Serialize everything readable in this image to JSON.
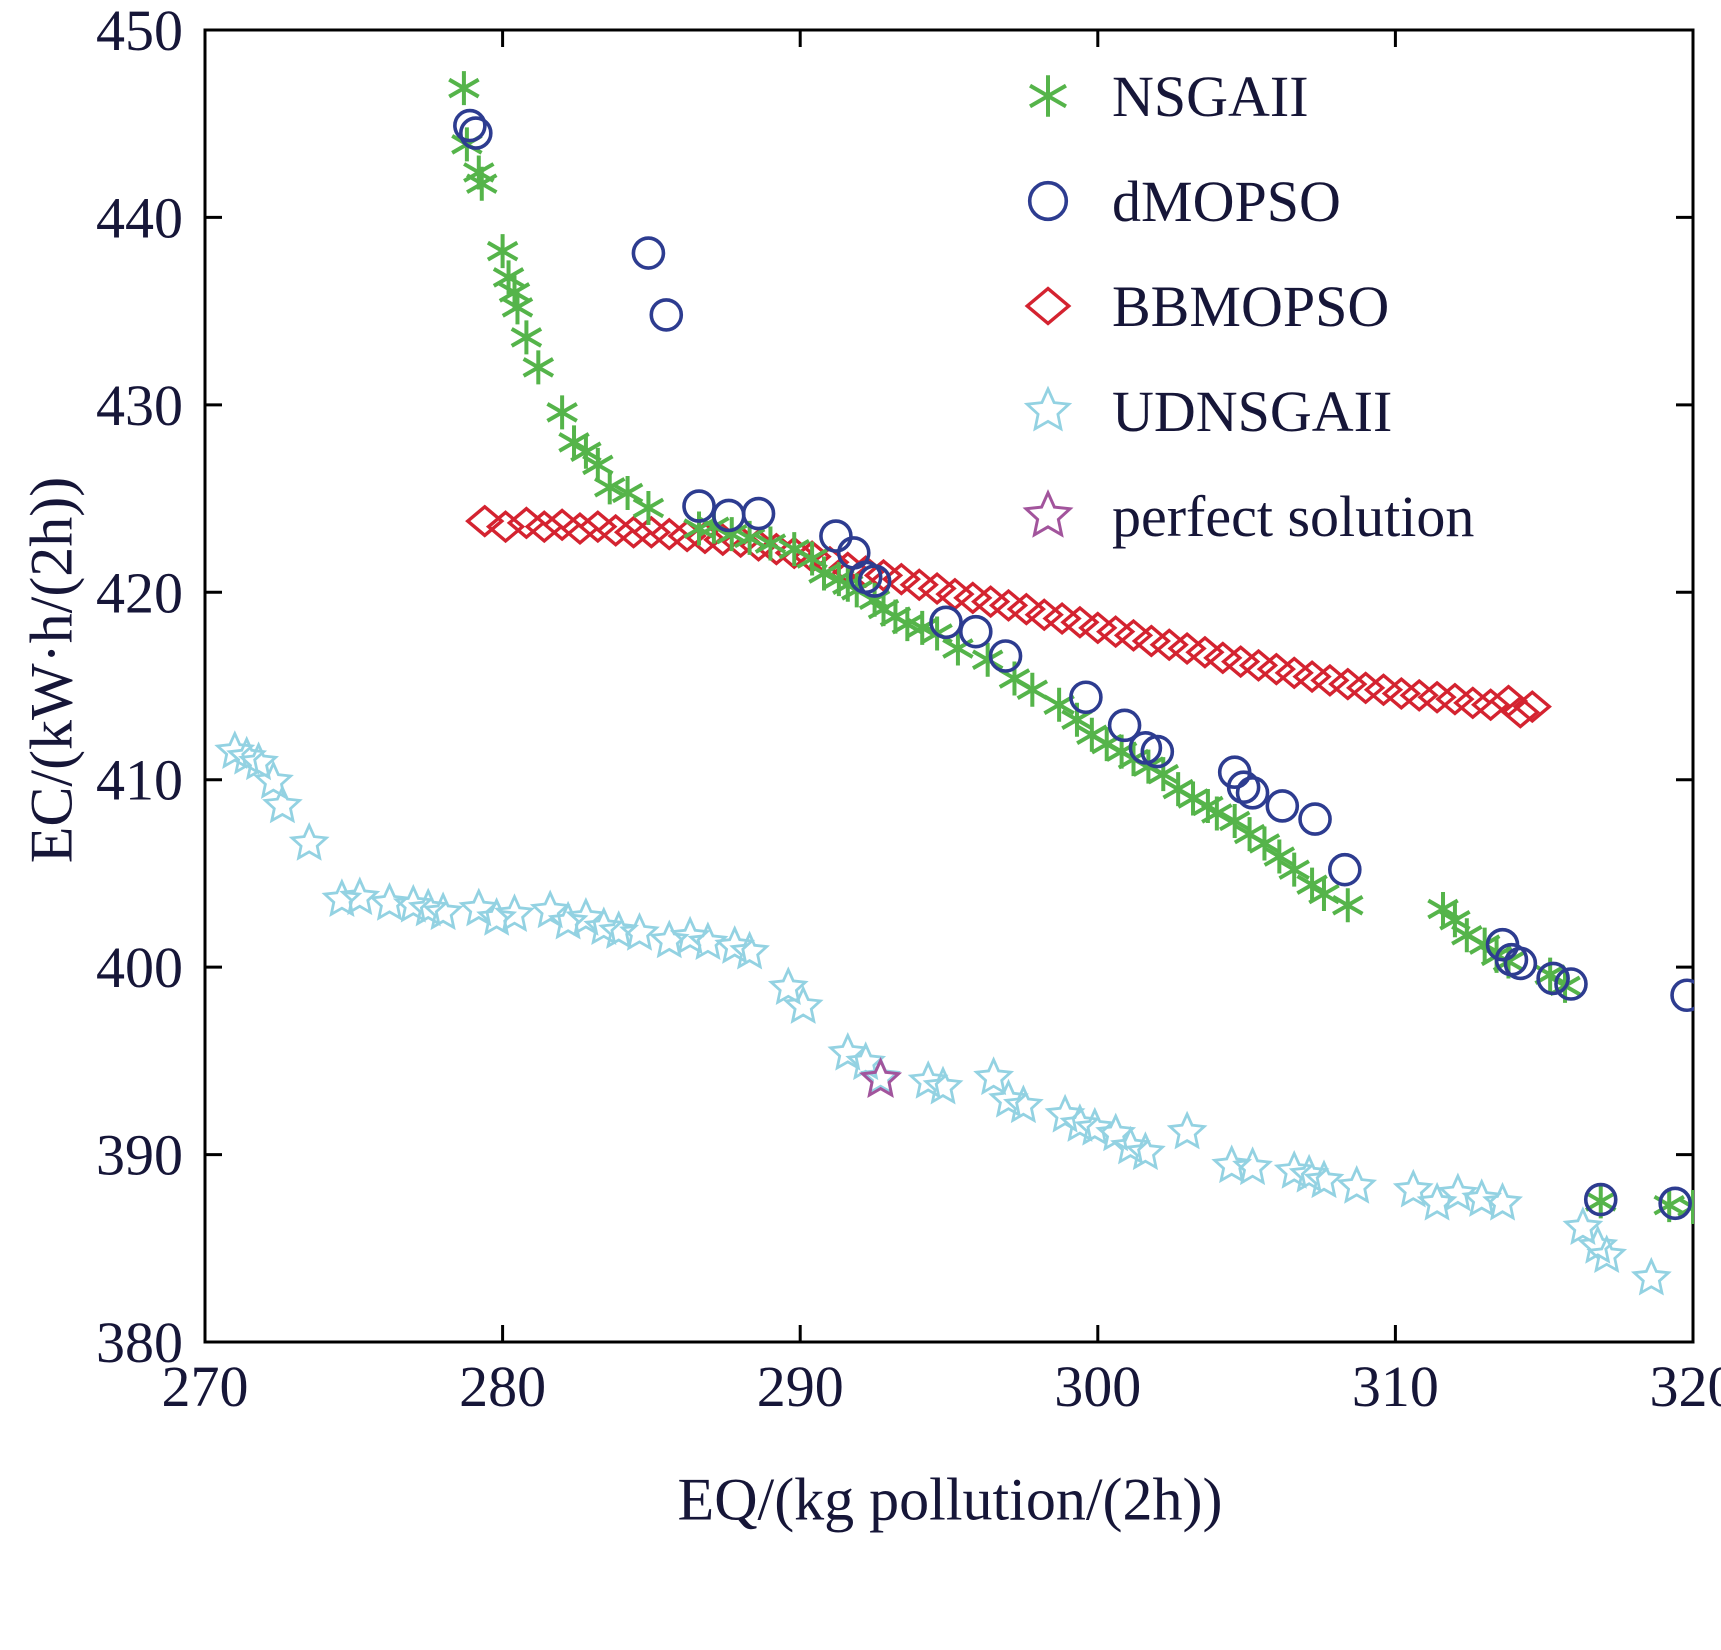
{
  "chart_data": {
    "type": "scatter",
    "title": "",
    "xlabel": "EQ/(kg  pollution/(2h))",
    "ylabel": "EC/(kW·h/(2h))",
    "xlim": [
      270,
      320
    ],
    "ylim": [
      380,
      450
    ],
    "x_ticks": [
      270,
      280,
      290,
      300,
      310,
      320
    ],
    "y_ticks": [
      380,
      390,
      400,
      410,
      420,
      430,
      440,
      450
    ],
    "grid": false,
    "legend_position": "top-right-inside",
    "axis_color": "#000000",
    "text_color": "#161638",
    "background": "#ffffff",
    "series": [
      {
        "name": "NSGAII",
        "marker": "asterisk",
        "color": "#55b44a",
        "size": 17,
        "stroke_width": 4,
        "z": 2,
        "points": [
          [
            278.7,
            446.9
          ],
          [
            278.8,
            443.9
          ],
          [
            279.2,
            442.4
          ],
          [
            279.3,
            441.8
          ],
          [
            280.0,
            438.2
          ],
          [
            280.2,
            436.8
          ],
          [
            280.4,
            436.0
          ],
          [
            280.5,
            435.2
          ],
          [
            280.8,
            433.6
          ],
          [
            281.2,
            432.0
          ],
          [
            282.0,
            429.6
          ],
          [
            282.4,
            428.0
          ],
          [
            282.8,
            427.5
          ],
          [
            283.2,
            426.8
          ],
          [
            283.6,
            425.6
          ],
          [
            284.2,
            425.3
          ],
          [
            284.9,
            424.5
          ],
          [
            286.6,
            423.4
          ],
          [
            287.1,
            423.5
          ],
          [
            287.7,
            423.1
          ],
          [
            288.3,
            422.9
          ],
          [
            289.0,
            422.6
          ],
          [
            289.8,
            422.3
          ],
          [
            290.4,
            421.8
          ],
          [
            290.8,
            421.0
          ],
          [
            291.3,
            420.7
          ],
          [
            291.6,
            420.4
          ],
          [
            291.9,
            420.1
          ],
          [
            292.5,
            419.6
          ],
          [
            292.8,
            419.1
          ],
          [
            293.2,
            418.7
          ],
          [
            293.6,
            418.3
          ],
          [
            294.1,
            418.1
          ],
          [
            294.6,
            417.8
          ],
          [
            295.3,
            417.0
          ],
          [
            296.3,
            416.4
          ],
          [
            297.2,
            415.4
          ],
          [
            297.8,
            414.8
          ],
          [
            298.7,
            414.0
          ],
          [
            299.3,
            413.2
          ],
          [
            299.8,
            412.4
          ],
          [
            300.3,
            411.9
          ],
          [
            300.8,
            411.5
          ],
          [
            301.2,
            411.1
          ],
          [
            301.7,
            410.7
          ],
          [
            302.2,
            410.3
          ],
          [
            302.7,
            409.5
          ],
          [
            303.2,
            409.0
          ],
          [
            303.7,
            408.6
          ],
          [
            304.0,
            408.2
          ],
          [
            304.6,
            407.8
          ],
          [
            305.1,
            407.1
          ],
          [
            305.6,
            406.6
          ],
          [
            306.1,
            405.9
          ],
          [
            306.6,
            405.2
          ],
          [
            307.2,
            404.4
          ],
          [
            307.6,
            403.9
          ],
          [
            308.4,
            403.3
          ],
          [
            311.6,
            403.1
          ],
          [
            312.0,
            402.5
          ],
          [
            312.4,
            401.7
          ],
          [
            313.0,
            401.2
          ],
          [
            313.4,
            400.6
          ],
          [
            313.8,
            400.3
          ],
          [
            315.2,
            399.6
          ],
          [
            315.7,
            399.0
          ],
          [
            316.9,
            387.5
          ],
          [
            319.2,
            387.3
          ],
          [
            320.0,
            387.2
          ]
        ]
      },
      {
        "name": "dMOPSO",
        "marker": "circle",
        "color": "#2d3c90",
        "size": 15,
        "stroke_width": 3.6,
        "z": 3,
        "points": [
          [
            278.9,
            444.9
          ],
          [
            279.1,
            444.5
          ],
          [
            284.9,
            438.1
          ],
          [
            285.5,
            434.8
          ],
          [
            286.6,
            424.6
          ],
          [
            287.6,
            424.1
          ],
          [
            288.6,
            424.2
          ],
          [
            291.2,
            423.0
          ],
          [
            291.8,
            422.1
          ],
          [
            292.2,
            420.8
          ],
          [
            292.5,
            420.6
          ],
          [
            294.9,
            418.4
          ],
          [
            295.9,
            417.9
          ],
          [
            296.9,
            416.6
          ],
          [
            299.6,
            414.4
          ],
          [
            300.9,
            412.9
          ],
          [
            301.6,
            411.7
          ],
          [
            302.0,
            411.5
          ],
          [
            304.6,
            410.4
          ],
          [
            304.9,
            409.6
          ],
          [
            305.2,
            409.3
          ],
          [
            306.2,
            408.6
          ],
          [
            307.3,
            407.9
          ],
          [
            308.3,
            405.2
          ],
          [
            313.6,
            401.2
          ],
          [
            313.9,
            400.4
          ],
          [
            314.2,
            400.2
          ],
          [
            315.3,
            399.4
          ],
          [
            315.9,
            399.1
          ],
          [
            319.8,
            398.5
          ],
          [
            316.9,
            387.6
          ],
          [
            319.4,
            387.4
          ]
        ]
      },
      {
        "name": "BBMOPSO",
        "marker": "diamond",
        "color": "#d42330",
        "size": 17,
        "stroke_width": 3.4,
        "z": 1,
        "points": [
          [
            279.4,
            423.8
          ],
          [
            280.1,
            423.5
          ],
          [
            280.8,
            423.7
          ],
          [
            281.4,
            423.5
          ],
          [
            282.0,
            423.6
          ],
          [
            282.6,
            423.4
          ],
          [
            283.2,
            423.5
          ],
          [
            283.8,
            423.3
          ],
          [
            284.4,
            423.2
          ],
          [
            285.0,
            423.2
          ],
          [
            285.6,
            423.1
          ],
          [
            286.2,
            423.0
          ],
          [
            286.8,
            422.9
          ],
          [
            287.4,
            422.8
          ],
          [
            288.0,
            422.7
          ],
          [
            288.6,
            422.5
          ],
          [
            289.2,
            422.3
          ],
          [
            289.8,
            422.1
          ],
          [
            290.4,
            421.9
          ],
          [
            291.0,
            421.6
          ],
          [
            291.6,
            421.3
          ],
          [
            292.2,
            421.1
          ],
          [
            292.8,
            420.9
          ],
          [
            293.4,
            420.7
          ],
          [
            294.0,
            420.4
          ],
          [
            294.6,
            420.2
          ],
          [
            295.2,
            419.9
          ],
          [
            295.8,
            419.7
          ],
          [
            296.4,
            419.5
          ],
          [
            297.0,
            419.3
          ],
          [
            297.6,
            419.1
          ],
          [
            298.2,
            418.8
          ],
          [
            298.8,
            418.6
          ],
          [
            299.4,
            418.4
          ],
          [
            300.0,
            418.1
          ],
          [
            300.6,
            417.9
          ],
          [
            301.2,
            417.7
          ],
          [
            301.8,
            417.4
          ],
          [
            302.4,
            417.2
          ],
          [
            303.0,
            417.0
          ],
          [
            303.6,
            416.8
          ],
          [
            304.2,
            416.5
          ],
          [
            304.8,
            416.3
          ],
          [
            305.4,
            416.1
          ],
          [
            306.0,
            415.9
          ],
          [
            306.6,
            415.7
          ],
          [
            307.2,
            415.5
          ],
          [
            307.8,
            415.3
          ],
          [
            308.4,
            415.1
          ],
          [
            309.0,
            414.9
          ],
          [
            309.6,
            414.8
          ],
          [
            310.2,
            414.6
          ],
          [
            310.8,
            414.5
          ],
          [
            311.4,
            414.4
          ],
          [
            312.0,
            414.3
          ],
          [
            312.6,
            414.1
          ],
          [
            313.2,
            414.0
          ],
          [
            313.8,
            414.2
          ],
          [
            314.2,
            413.6
          ],
          [
            314.6,
            413.9
          ]
        ]
      },
      {
        "name": "UDNSGAII",
        "marker": "star5",
        "color": "#93d2e2",
        "size": 18,
        "stroke_width": 2.8,
        "z": 1,
        "points": [
          [
            271.0,
            411.5
          ],
          [
            271.4,
            411.2
          ],
          [
            271.8,
            410.9
          ],
          [
            272.3,
            409.9
          ],
          [
            272.6,
            408.6
          ],
          [
            273.5,
            406.6
          ],
          [
            274.6,
            403.6
          ],
          [
            275.2,
            403.7
          ],
          [
            276.2,
            403.4
          ],
          [
            277.0,
            403.3
          ],
          [
            277.5,
            403.1
          ],
          [
            278.0,
            402.9
          ],
          [
            279.2,
            403.1
          ],
          [
            279.8,
            402.6
          ],
          [
            280.4,
            402.8
          ],
          [
            281.6,
            403.0
          ],
          [
            282.2,
            402.4
          ],
          [
            282.8,
            402.6
          ],
          [
            283.4,
            402.1
          ],
          [
            283.9,
            401.9
          ],
          [
            284.6,
            401.8
          ],
          [
            285.6,
            401.4
          ],
          [
            286.3,
            401.6
          ],
          [
            286.9,
            401.3
          ],
          [
            287.8,
            401.1
          ],
          [
            288.3,
            400.8
          ],
          [
            289.6,
            398.9
          ],
          [
            290.1,
            397.9
          ],
          [
            291.6,
            395.4
          ],
          [
            292.2,
            394.9
          ],
          [
            292.7,
            394.1
          ],
          [
            294.3,
            393.9
          ],
          [
            294.8,
            393.6
          ],
          [
            296.5,
            394.1
          ],
          [
            297.0,
            392.9
          ],
          [
            297.5,
            392.6
          ],
          [
            298.9,
            392.1
          ],
          [
            299.4,
            391.6
          ],
          [
            299.9,
            391.4
          ],
          [
            300.6,
            391.1
          ],
          [
            301.1,
            390.4
          ],
          [
            301.6,
            390.1
          ],
          [
            303.0,
            391.2
          ],
          [
            304.5,
            389.4
          ],
          [
            305.2,
            389.3
          ],
          [
            306.6,
            389.1
          ],
          [
            307.1,
            388.9
          ],
          [
            307.6,
            388.6
          ],
          [
            308.7,
            388.3
          ],
          [
            310.6,
            388.1
          ],
          [
            311.4,
            387.4
          ],
          [
            312.1,
            387.9
          ],
          [
            312.9,
            387.6
          ],
          [
            313.6,
            387.4
          ],
          [
            316.3,
            386.1
          ],
          [
            316.8,
            385.1
          ],
          [
            317.1,
            384.6
          ],
          [
            318.6,
            383.4
          ]
        ]
      },
      {
        "name": "perfect solution",
        "marker": "star5",
        "color": "#a2549c",
        "size": 19,
        "stroke_width": 3,
        "z": 4,
        "points": [
          [
            292.7,
            394.0
          ]
        ]
      }
    ]
  }
}
